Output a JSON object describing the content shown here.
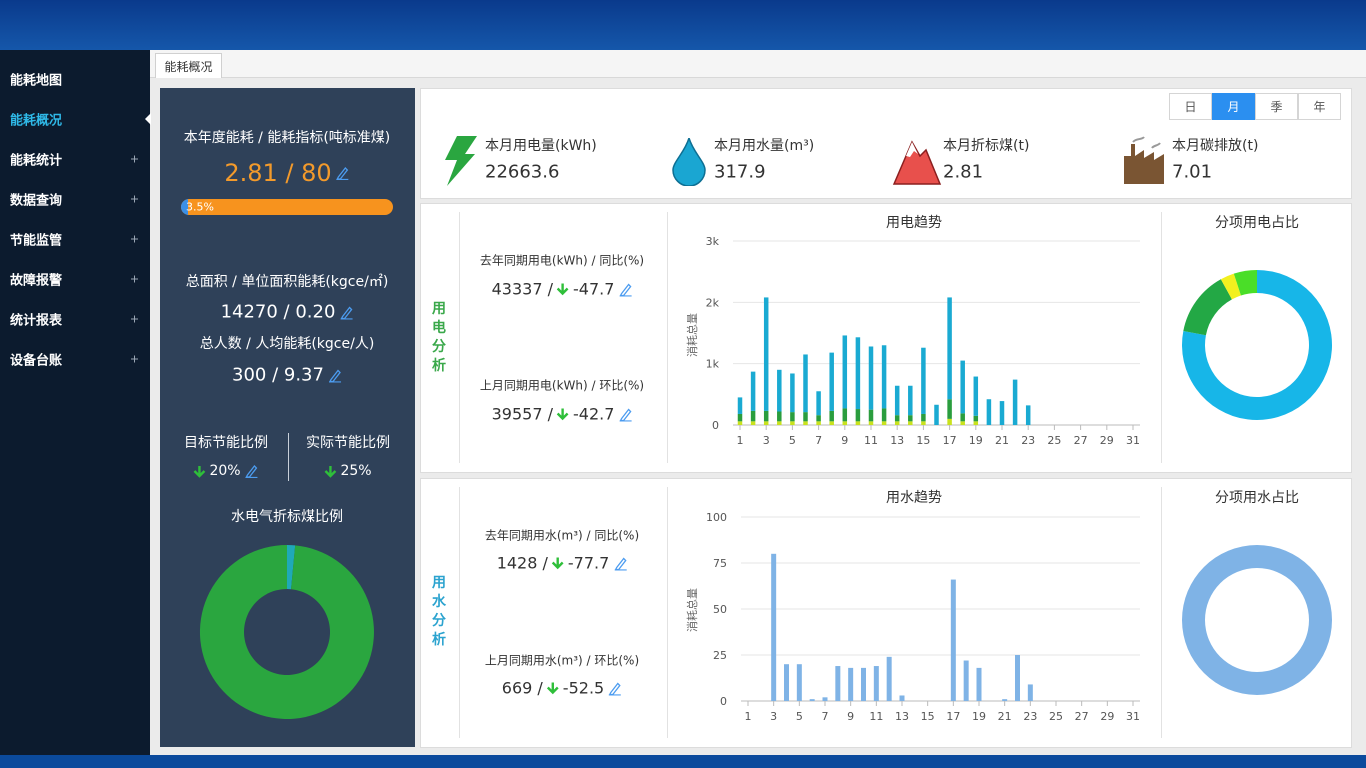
{
  "sidebar": {
    "items": [
      "能耗地图",
      "能耗概况",
      "能耗统计",
      "数据查询",
      "节能监管",
      "故障报警",
      "统计报表",
      "设备台账"
    ]
  },
  "tab": "能耗概况",
  "summary": {
    "energy_label": "本年度能耗 / 能耗指标(吨标准煤)",
    "energy": "2.81 / 80",
    "progress": {
      "value": 3.5,
      "label": "3.5%"
    },
    "area_label": "总面积 / 单位面积能耗(kgce/㎡)",
    "area": "14270 / 0.20",
    "people_label": "总人数 / 人均能耗(kgce/人)",
    "people": "300 / 9.37",
    "target_label": "目标节能比例",
    "target": "20%",
    "actual_label": "实际节能比例",
    "actual": "25%"
  },
  "periods": [
    "日",
    "月",
    "季",
    "年"
  ],
  "kpis": [
    {
      "label": "本月用电量(kWh)",
      "value": "22663.6"
    },
    {
      "label": "本月用水量(m³)",
      "value": "317.9"
    },
    {
      "label": "本月折标煤(t)",
      "value": "2.81"
    },
    {
      "label": "本月碳排放(t)",
      "value": "7.01"
    }
  ],
  "electricity": {
    "title": "用电分析",
    "yoy_label": "去年同期用电(kWh) / 同比(%)",
    "yoy_base": "43337 /",
    "yoy": "-47.7",
    "mom_label": "上月同期用电(kWh) / 环比(%)",
    "mom_base": "39557 /",
    "mom": "-42.7"
  },
  "water": {
    "title": "用水分析",
    "yoy_label": "去年同期用水(m³) / 同比(%)",
    "yoy_base": "1428 /",
    "yoy": "-77.7",
    "mom_label": "上月同期用水(m³) / 环比(%)",
    "mom_base": "669 /",
    "mom": "-52.5"
  },
  "chart_data": [
    {
      "type": "bar",
      "title": "用电趋势",
      "y_label": "消耗总量",
      "grid": true,
      "categories": [
        "1",
        null,
        "3",
        null,
        "5",
        null,
        "7",
        null,
        "9",
        null,
        "11",
        null,
        "13",
        null,
        "15",
        null,
        "17",
        null,
        "19",
        null,
        "21",
        null,
        "23",
        null,
        "25",
        null,
        "27",
        null,
        "29",
        null,
        "31"
      ],
      "series": [
        {
          "color": "#c9e21c",
          "values": [
            60,
            60,
            60,
            60,
            60,
            60,
            60,
            60,
            60,
            60,
            60,
            60,
            60,
            60,
            60,
            0,
            100,
            60,
            60,
            0,
            0,
            0,
            0,
            null,
            null,
            null,
            null,
            null,
            null,
            null,
            null
          ]
        },
        {
          "color": "#2a9d3e",
          "values": [
            120,
            170,
            170,
            160,
            150,
            150,
            100,
            170,
            210,
            200,
            190,
            210,
            100,
            100,
            120,
            0,
            320,
            130,
            90,
            0,
            0,
            0,
            0,
            null,
            null,
            null,
            null,
            null,
            null,
            null,
            null
          ]
        },
        {
          "color": "#1aaad2",
          "values": [
            270,
            640,
            1850,
            680,
            630,
            940,
            390,
            950,
            1190,
            1170,
            1030,
            1030,
            480,
            480,
            1080,
            330,
            1660,
            860,
            640,
            420,
            390,
            740,
            320,
            null,
            null,
            null,
            null,
            null,
            null,
            null,
            null
          ]
        }
      ],
      "ylim": [
        0,
        3000
      ],
      "yticks": [
        0,
        {
          "value": 1000,
          "label": "1k"
        },
        {
          "value": 2000,
          "label": "2k"
        },
        {
          "value": 3000,
          "label": "3k"
        }
      ]
    },
    {
      "type": "pie",
      "title": "分项用电占比",
      "values": [
        78,
        14,
        3,
        5
      ],
      "colors": [
        "#17b6e8",
        "#23a845",
        "#f2f01f",
        "#4ade28"
      ]
    },
    {
      "type": "bar",
      "title": "用水趋势",
      "y_label": "消耗总量",
      "grid": true,
      "color": "#7fb3e6",
      "categories": [
        "1",
        null,
        "3",
        null,
        "5",
        null,
        "7",
        null,
        "9",
        null,
        "11",
        null,
        "13",
        null,
        "15",
        null,
        "17",
        null,
        "19",
        null,
        "21",
        null,
        "23",
        null,
        "25",
        null,
        "27",
        null,
        "29",
        null,
        "31"
      ],
      "values": [
        0,
        0,
        80,
        20,
        20,
        1,
        2,
        19,
        18,
        18,
        19,
        24,
        3,
        0,
        0,
        0,
        66,
        22,
        18,
        0,
        1,
        25,
        9,
        null,
        null,
        null,
        null,
        null,
        null,
        null,
        null
      ],
      "ylim": [
        0,
        100
      ],
      "yticks": [
        0,
        25,
        50,
        75,
        100
      ]
    },
    {
      "type": "pie",
      "title": "分项用水占比",
      "values": [
        100
      ],
      "colors": [
        "#7fb3e6"
      ]
    },
    {
      "type": "pie",
      "title": "水电气折标煤比例",
      "values": [
        1.5,
        98.5
      ],
      "colors": [
        "#1fa9b8",
        "#2aa63f"
      ]
    }
  ]
}
